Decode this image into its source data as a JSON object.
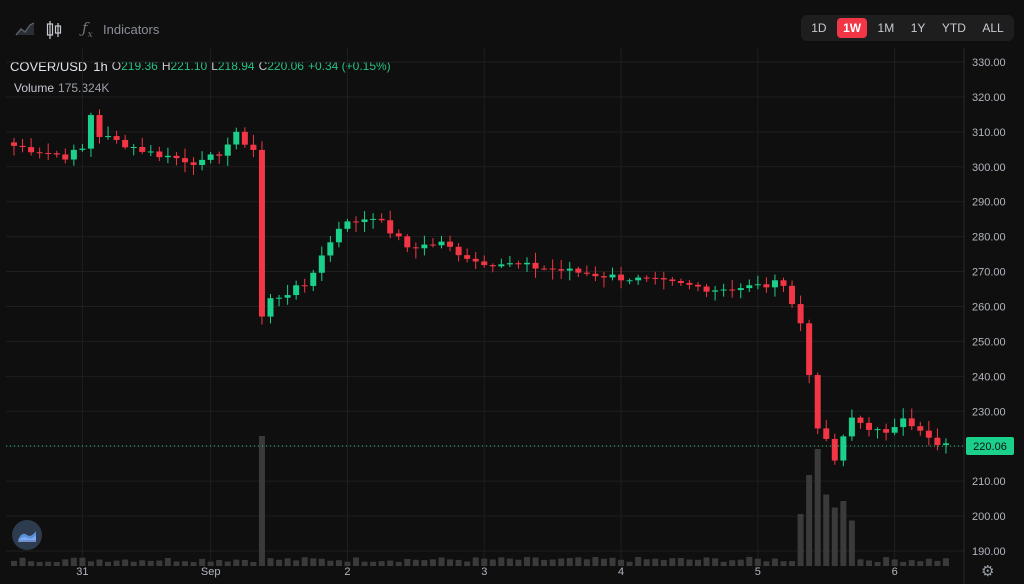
{
  "toolbar": {
    "indicators_label": "Indicators",
    "icons": [
      "area-chart-icon",
      "candlestick-icon",
      "fx-icon"
    ],
    "ranges": [
      {
        "label": "1D",
        "active": false
      },
      {
        "label": "1W",
        "active": true
      },
      {
        "label": "1M",
        "active": false
      },
      {
        "label": "1Y",
        "active": false
      },
      {
        "label": "YTD",
        "active": false
      },
      {
        "label": "ALL",
        "active": false
      }
    ]
  },
  "legend": {
    "symbol": "COVER/USD",
    "timeframe": "1h",
    "open_key": "O",
    "open": "219.36",
    "high_key": "H",
    "high": "221.10",
    "low_key": "L",
    "low": "218.94",
    "close_key": "C",
    "close": "220.06",
    "change": "+0.34 (+0.15%)",
    "volume_label": "Volume",
    "volume_value": "175.324K"
  },
  "colors": {
    "up": "#26a69a",
    "up_bright": "#1bd08a",
    "down": "#f23645",
    "bg": "#0f0f0f",
    "grid": "#1f1f1f",
    "price_tag": "#1bd08a",
    "accent": "#f23645"
  },
  "chart_data": {
    "type": "candlestick",
    "yaxis_ticks": [
      "330.00",
      "320.00",
      "310.00",
      "300.00",
      "290.00",
      "280.00",
      "270.00",
      "260.00",
      "250.00",
      "240.00",
      "230.00",
      "220.00",
      "210.00",
      "200.00",
      "190.00"
    ],
    "ylim": [
      188,
      334
    ],
    "xaxis_ticks": [
      {
        "label": "31",
        "index": 8
      },
      {
        "label": "Sep",
        "index": 23
      },
      {
        "label": "2",
        "index": 39
      },
      {
        "label": "3",
        "index": 55
      },
      {
        "label": "4",
        "index": 71
      },
      {
        "label": "5",
        "index": 87
      },
      {
        "label": "6",
        "index": 103
      }
    ],
    "last_price": 220.06,
    "last_price_label": "220.06",
    "keypoints": [
      [
        0,
        306
      ],
      [
        6,
        303
      ],
      [
        8,
        305
      ],
      [
        9,
        315
      ],
      [
        10,
        309
      ],
      [
        16,
        304
      ],
      [
        22,
        301
      ],
      [
        24,
        304
      ],
      [
        26,
        309
      ],
      [
        28,
        305
      ],
      [
        29,
        257
      ],
      [
        30,
        262
      ],
      [
        34,
        266
      ],
      [
        38,
        283
      ],
      [
        42,
        286
      ],
      [
        46,
        277
      ],
      [
        50,
        278
      ],
      [
        54,
        273
      ],
      [
        62,
        271
      ],
      [
        72,
        268
      ],
      [
        82,
        265
      ],
      [
        88,
        266
      ],
      [
        90,
        267
      ],
      [
        92,
        255
      ],
      [
        94,
        226
      ],
      [
        96,
        216
      ],
      [
        98,
        228
      ],
      [
        102,
        223
      ],
      [
        104,
        229
      ],
      [
        106,
        224
      ],
      [
        108,
        220
      ]
    ],
    "volume_spikes": [
      {
        "index": 29,
        "value": 100
      },
      {
        "index": 92,
        "value": 40
      },
      {
        "index": 93,
        "value": 70
      },
      {
        "index": 94,
        "value": 90
      },
      {
        "index": 95,
        "value": 55
      },
      {
        "index": 96,
        "value": 45
      },
      {
        "index": 97,
        "value": 50
      },
      {
        "index": 98,
        "value": 35
      }
    ]
  }
}
